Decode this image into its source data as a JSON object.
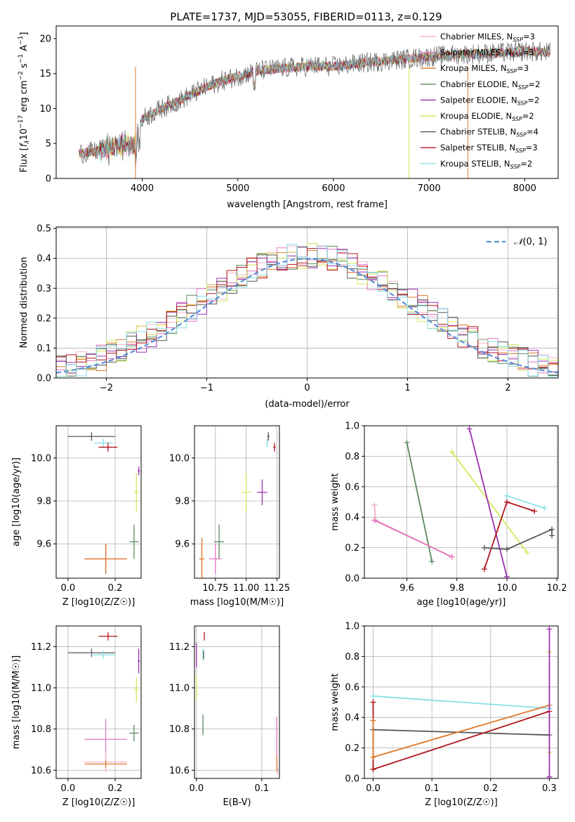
{
  "page_title": "PLATE=1737, MJD=53055, FIBERID=0113, z=0.129",
  "model_colors": {
    "Chabrier MILES": "#f5b5d0",
    "Salpeter MILES": "#e377c2",
    "Kroupa MILES": "#e07a2a",
    "Chabrier ELODIE": "#5a8a5e",
    "Salpeter ELODIE": "#9b30b0",
    "Kroupa ELODIE": "#d4e85a",
    "Chabrier STELIB": "#555555",
    "Salpeter STELIB": "#b0151c",
    "Kroupa STELIB": "#88dfe6"
  },
  "chart_data": [
    {
      "id": "spectrum",
      "type": "line",
      "title": "PLATE=1737, MJD=53055, FIBERID=0113, z=0.129",
      "xlabel": "wavelength [Angstrom, rest frame]",
      "ylabel": "Flux [f_λ 10^-17 erg cm^-2 s^-1 A^-1]",
      "xlim": [
        3100,
        8350
      ],
      "ylim": [
        0,
        21.8
      ],
      "xticks": [
        "4000",
        "5000",
        "6000",
        "7000",
        "8000"
      ],
      "yticks": [
        "0",
        "5",
        "10",
        "15",
        "20"
      ],
      "continuum": [
        [
          3340,
          3.6
        ],
        [
          3500,
          3.8
        ],
        [
          3700,
          4.5
        ],
        [
          3920,
          5.0
        ],
        [
          4000,
          8.5
        ],
        [
          4200,
          10.0
        ],
        [
          4400,
          11.2
        ],
        [
          4600,
          12.6
        ],
        [
          4800,
          13.8
        ],
        [
          5000,
          14.6
        ],
        [
          5200,
          15.4
        ],
        [
          5500,
          15.8
        ],
        [
          5800,
          16.1
        ],
        [
          6000,
          16.0
        ],
        [
          6300,
          16.5
        ],
        [
          6600,
          16.9
        ],
        [
          7000,
          17.4
        ],
        [
          7400,
          17.8
        ],
        [
          7800,
          18.0
        ],
        [
          8000,
          18.2
        ],
        [
          8270,
          18.0
        ]
      ],
      "legend": [
        {
          "label": "Chabrier MILES",
          "nssp": "3",
          "model": "Chabrier MILES"
        },
        {
          "label": "Salpeter MILES",
          "nssp": "3",
          "model": "Salpeter MILES"
        },
        {
          "label": "Kroupa MILES",
          "nssp": "3",
          "model": "Kroupa MILES"
        },
        {
          "label": "Chabrier ELODIE",
          "nssp": "2",
          "model": "Chabrier ELODIE"
        },
        {
          "label": "Salpeter ELODIE",
          "nssp": "2",
          "model": "Salpeter ELODIE"
        },
        {
          "label": "Kroupa ELODIE",
          "nssp": "2",
          "model": "Kroupa ELODIE"
        },
        {
          "label": "Chabrier STELIB",
          "nssp": "4",
          "model": "Chabrier STELIB"
        },
        {
          "label": "Salpeter STELIB",
          "nssp": "3",
          "model": "Salpeter STELIB"
        },
        {
          "label": "Kroupa STELIB",
          "nssp": "2",
          "model": "Kroupa STELIB"
        }
      ]
    },
    {
      "id": "residuals",
      "type": "histogram",
      "xlabel": "(data-model)/error",
      "ylabel": "Normed distribution",
      "xlim": [
        -2.5,
        2.5
      ],
      "ylim": [
        0,
        0.505
      ],
      "xticks": [
        -2,
        -1,
        0,
        1,
        2
      ],
      "yticks": [
        0.0,
        0.1,
        0.2,
        0.3,
        0.4,
        0.5
      ],
      "bin_width": 0.1,
      "legend_label": "N(0,1)",
      "grid": true
    },
    {
      "id": "age_vs_Z",
      "type": "errorbar",
      "xlabel": "Z [log10(Z/Z☉)]",
      "ylabel": "age [log10(age/yr)]",
      "xlim": [
        -0.05,
        0.31
      ],
      "ylim": [
        9.44,
        10.15
      ],
      "xticks": [
        0.0,
        0.2
      ],
      "yticks": [
        9.6,
        9.8,
        10.0
      ],
      "points": [
        {
          "model": "Chabrier STELIB",
          "x": 0.1,
          "xerr": 0.1,
          "y": 10.1,
          "yerr": 0.02
        },
        {
          "model": "Kroupa STELIB",
          "x": 0.15,
          "xerr": 0.04,
          "y": 10.07,
          "yerr": 0.02
        },
        {
          "model": "Salpeter STELIB",
          "x": 0.17,
          "xerr": 0.04,
          "y": 10.05,
          "yerr": 0.02
        },
        {
          "model": "Salpeter ELODIE",
          "x": 0.3,
          "xerr": 0.005,
          "y": 9.94,
          "yerr": 0.02
        },
        {
          "model": "Kroupa ELODIE",
          "x": 0.29,
          "xerr": 0.01,
          "y": 9.84,
          "yerr": 0.09
        },
        {
          "model": "Chabrier ELODIE",
          "x": 0.28,
          "xerr": 0.02,
          "y": 9.61,
          "yerr": 0.08
        },
        {
          "model": "Chabrier MILES",
          "x": 0.16,
          "xerr": 0.09,
          "y": 9.53,
          "yerr": 0.07
        },
        {
          "model": "Salpeter MILES",
          "x": 0.16,
          "xerr": 0.09,
          "y": 9.53,
          "yerr": 0.07
        },
        {
          "model": "Kroupa MILES",
          "x": 0.16,
          "xerr": 0.09,
          "y": 9.53,
          "yerr": 0.07
        }
      ]
    },
    {
      "id": "age_vs_mass",
      "type": "errorbar",
      "xlabel": "mass [log10(M/M☉)]",
      "ylabel": "",
      "xlim": [
        10.58,
        11.27
      ],
      "ylim": [
        9.44,
        10.15
      ],
      "xticks": [
        10.75,
        11.0,
        11.25
      ],
      "yticks": [
        9.6,
        9.8,
        10.0
      ],
      "points": [
        {
          "model": "Chabrier STELIB",
          "x": 11.18,
          "xerr": 0.01,
          "y": 10.1,
          "yerr": 0.02
        },
        {
          "model": "Kroupa STELIB",
          "x": 11.17,
          "xerr": 0.01,
          "y": 10.07,
          "yerr": 0.02
        },
        {
          "model": "Salpeter STELIB",
          "x": 11.23,
          "xerr": 0.01,
          "y": 10.05,
          "yerr": 0.02
        },
        {
          "model": "Salpeter ELODIE",
          "x": 11.13,
          "xerr": 0.04,
          "y": 9.84,
          "yerr": 0.06
        },
        {
          "model": "Kroupa ELODIE",
          "x": 11.0,
          "xerr": 0.04,
          "y": 9.84,
          "yerr": 0.09
        },
        {
          "model": "Chabrier ELODIE",
          "x": 10.78,
          "xerr": 0.04,
          "y": 9.61,
          "yerr": 0.08
        },
        {
          "model": "Chabrier MILES",
          "x": 10.64,
          "xerr": 0.02,
          "y": 9.53,
          "yerr": 0.1
        },
        {
          "model": "Salpeter MILES",
          "x": 10.75,
          "xerr": 0.05,
          "y": 9.53,
          "yerr": 0.07
        },
        {
          "model": "Kroupa MILES",
          "x": 10.64,
          "xerr": 0.02,
          "y": 9.53,
          "yerr": 0.1
        }
      ]
    },
    {
      "id": "weight_vs_age",
      "type": "line",
      "xlabel": "age [log10(age/yr)]",
      "ylabel": "mass weight",
      "xlim": [
        9.43,
        10.205
      ],
      "ylim": [
        0,
        1
      ],
      "xticks": [
        9.6,
        9.8,
        10.0,
        10.2
      ],
      "yticks": [
        0.0,
        0.2,
        0.4,
        0.6,
        0.8,
        1.0
      ],
      "series": [
        {
          "model": "Chabrier ELODIE",
          "points": [
            [
              9.6,
              0.89
            ],
            [
              9.7,
              0.11
            ]
          ]
        },
        {
          "model": "Kroupa ELODIE",
          "points": [
            [
              9.78,
              0.83
            ],
            [
              10.08,
              0.17
            ]
          ]
        },
        {
          "model": "Salpeter ELODIE",
          "points": [
            [
              9.85,
              0.98
            ],
            [
              10.0,
              0.01
            ]
          ]
        },
        {
          "model": "Kroupa MILES",
          "points": [
            [
              9.47,
              0.48
            ],
            [
              9.475,
              0.38
            ],
            [
              9.78,
              0.14
            ]
          ]
        },
        {
          "model": "Chabrier MILES",
          "points": [
            [
              9.47,
              0.48
            ],
            [
              9.475,
              0.38
            ],
            [
              9.78,
              0.14
            ]
          ]
        },
        {
          "model": "Salpeter MILES",
          "points": [
            [
              9.47,
              0.38
            ],
            [
              9.78,
              0.14
            ]
          ]
        },
        {
          "model": "Kroupa STELIB",
          "points": [
            [
              10.0,
              0.54
            ],
            [
              10.15,
              0.46
            ]
          ]
        },
        {
          "model": "Salpeter STELIB",
          "points": [
            [
              9.91,
              0.06
            ],
            [
              10.0,
              0.5
            ],
            [
              10.11,
              0.44
            ]
          ]
        },
        {
          "model": "Chabrier STELIB",
          "points": [
            [
              9.91,
              0.2
            ],
            [
              10.0,
              0.19
            ],
            [
              10.18,
              0.32
            ],
            [
              10.18,
              0.28
            ]
          ]
        }
      ]
    },
    {
      "id": "mass_vs_Z",
      "type": "errorbar",
      "xlabel": "Z [log10(Z/Z☉)]",
      "ylabel": "mass [log10(M/M☉)]",
      "xlim": [
        -0.05,
        0.31
      ],
      "ylim": [
        10.56,
        11.3
      ],
      "xticks": [
        0.0,
        0.2
      ],
      "yticks": [
        10.6,
        10.8,
        11.0,
        11.2
      ],
      "points": [
        {
          "model": "Salpeter STELIB",
          "x": 0.17,
          "xerr": 0.04,
          "y": 11.25,
          "yerr": 0.02
        },
        {
          "model": "Chabrier STELIB",
          "x": 0.1,
          "xerr": 0.1,
          "y": 11.17,
          "yerr": 0.02
        },
        {
          "model": "Kroupa STELIB",
          "x": 0.15,
          "xerr": 0.05,
          "y": 11.16,
          "yerr": 0.02
        },
        {
          "model": "Salpeter ELODIE",
          "x": 0.3,
          "xerr": 0.005,
          "y": 11.13,
          "yerr": 0.06
        },
        {
          "model": "Kroupa ELODIE",
          "x": 0.29,
          "xerr": 0.01,
          "y": 10.99,
          "yerr": 0.06
        },
        {
          "model": "Chabrier ELODIE",
          "x": 0.28,
          "xerr": 0.02,
          "y": 10.78,
          "yerr": 0.04
        },
        {
          "model": "Salpeter MILES",
          "x": 0.16,
          "xerr": 0.09,
          "y": 10.75,
          "yerr": 0.1
        },
        {
          "model": "Chabrier MILES",
          "x": 0.16,
          "xerr": 0.09,
          "y": 10.64,
          "yerr": 0.05
        },
        {
          "model": "Kroupa MILES",
          "x": 0.16,
          "xerr": 0.09,
          "y": 10.63,
          "yerr": 0.02
        }
      ]
    },
    {
      "id": "mass_vs_ebv",
      "type": "errorbar",
      "xlabel": "E(B-V)",
      "ylabel": "",
      "xlim": [
        -0.003,
        0.127
      ],
      "ylim": [
        10.56,
        11.3
      ],
      "xticks": [
        0.0,
        0.1
      ],
      "yticks": [
        10.6,
        10.8,
        11.0,
        11.2
      ],
      "points": [
        {
          "model": "Salpeter STELIB",
          "x": 0.012,
          "xerr": 0.0,
          "y": 11.25,
          "yerr": 0.02
        },
        {
          "model": "Salpeter ELODIE",
          "x": 0.0,
          "xerr": 0.0,
          "y": 11.16,
          "yerr": 0.06
        },
        {
          "model": "Kroupa STELIB",
          "x": 0.01,
          "xerr": 0.0,
          "y": 11.16,
          "yerr": 0.03
        },
        {
          "model": "Chabrier STELIB",
          "x": 0.011,
          "xerr": 0.0,
          "y": 11.16,
          "yerr": 0.02
        },
        {
          "model": "Kroupa ELODIE",
          "x": 0.0,
          "xerr": 0.0,
          "y": 11.0,
          "yerr": 0.06
        },
        {
          "model": "Chabrier ELODIE",
          "x": 0.01,
          "xerr": 0.0,
          "y": 10.82,
          "yerr": 0.05
        },
        {
          "model": "Salpeter MILES",
          "x": 0.123,
          "xerr": 0.0,
          "y": 10.76,
          "yerr": 0.1
        },
        {
          "model": "Kroupa MILES",
          "x": 0.123,
          "xerr": 0.0,
          "y": 10.63,
          "yerr": 0.04
        },
        {
          "model": "Chabrier MILES",
          "x": 0.124,
          "xerr": 0.0,
          "y": 10.6,
          "yerr": 0.02
        }
      ]
    },
    {
      "id": "weight_vs_Z",
      "type": "line",
      "xlabel": "Z [log10(Z/Z☉)]",
      "ylabel": "mass weight",
      "xlim": [
        -0.015,
        0.315
      ],
      "ylim": [
        0,
        1
      ],
      "xticks": [
        0.0,
        0.1,
        0.2,
        0.3
      ],
      "yticks": [
        0.0,
        0.2,
        0.4,
        0.6,
        0.8,
        1.0
      ],
      "series": [
        {
          "model": "Kroupa STELIB",
          "points": [
            [
              0.0,
              0.54
            ],
            [
              0.3,
              0.46
            ]
          ]
        },
        {
          "model": "Chabrier STELIB",
          "points": [
            [
              0.0,
              0.32
            ],
            [
              0.3,
              0.285
            ]
          ]
        },
        {
          "model": "Kroupa MILES",
          "points": [
            [
              0.0,
              0.14
            ],
            [
              0.3,
              0.48
            ]
          ]
        },
        {
          "model": "Salpeter STELIB",
          "points": [
            [
              0.0,
              0.06
            ],
            [
              0.3,
              0.44
            ]
          ]
        },
        {
          "model": "Salpeter STELIB",
          "points": [
            [
              0.0,
              0.06
            ],
            [
              0.0,
              0.5
            ]
          ]
        },
        {
          "model": "Kroupa MILES",
          "points": [
            [
              0.0,
              0.14
            ],
            [
              0.0,
              0.38
            ]
          ]
        },
        {
          "model": "Kroupa ELODIE",
          "points": [
            [
              0.3,
              0.17
            ],
            [
              0.3,
              0.83
            ]
          ]
        },
        {
          "model": "Salpeter ELODIE",
          "points": [
            [
              0.3,
              0.01
            ],
            [
              0.3,
              0.98
            ]
          ]
        }
      ]
    }
  ]
}
